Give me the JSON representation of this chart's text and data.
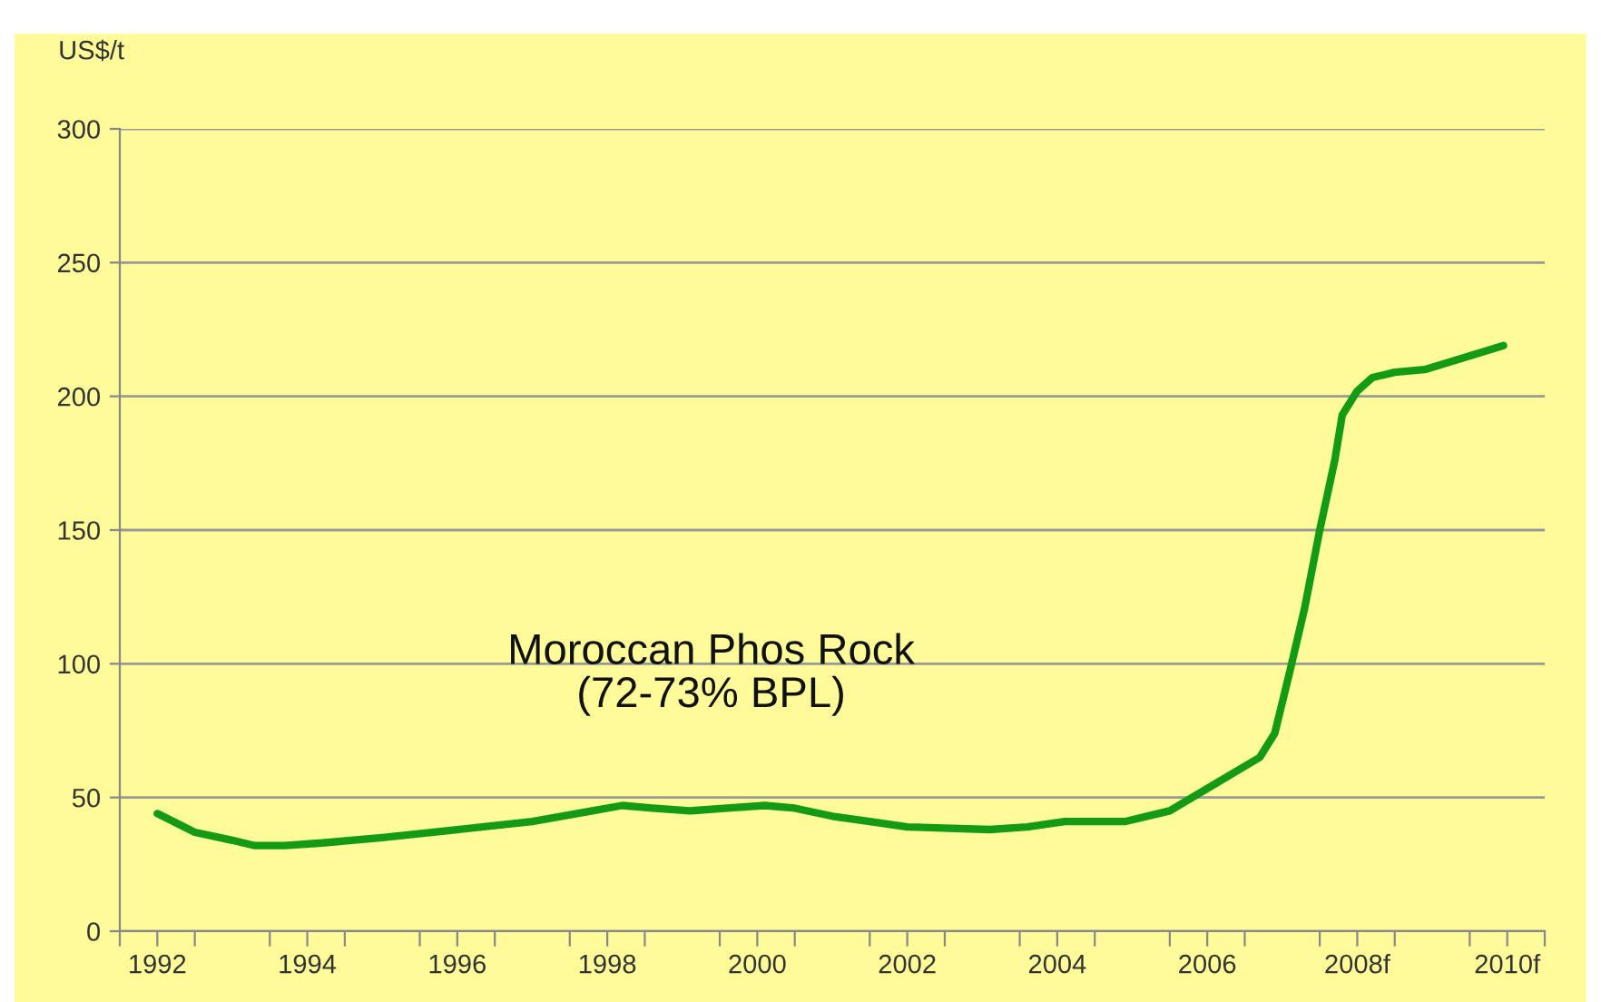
{
  "chart_data": {
    "type": "line",
    "ylabel": "US$/t",
    "xlim": [
      1991.5,
      2010.5
    ],
    "xticks": [
      {
        "value": 1991.5,
        "label": null
      },
      {
        "value": 1992,
        "label": "1992"
      },
      {
        "value": 1992.5,
        "label": null
      },
      {
        "value": 1993.5,
        "label": null
      },
      {
        "value": 1994,
        "label": "1994"
      },
      {
        "value": 1994.5,
        "label": null
      },
      {
        "value": 1995.5,
        "label": null
      },
      {
        "value": 1996,
        "label": "1996"
      },
      {
        "value": 1996.5,
        "label": null
      },
      {
        "value": 1997.5,
        "label": null
      },
      {
        "value": 1998,
        "label": "1998"
      },
      {
        "value": 1998.5,
        "label": null
      },
      {
        "value": 1999.5,
        "label": null
      },
      {
        "value": 2000,
        "label": "2000"
      },
      {
        "value": 2000.5,
        "label": null
      },
      {
        "value": 2001.5,
        "label": null
      },
      {
        "value": 2002,
        "label": "2002"
      },
      {
        "value": 2002.5,
        "label": null
      },
      {
        "value": 2003.5,
        "label": null
      },
      {
        "value": 2004,
        "label": "2004"
      },
      {
        "value": 2004.5,
        "label": null
      },
      {
        "value": 2005.5,
        "label": null
      },
      {
        "value": 2006,
        "label": "2006"
      },
      {
        "value": 2006.5,
        "label": null
      },
      {
        "value": 2007.5,
        "label": null
      },
      {
        "value": 2008,
        "label": "2008f"
      },
      {
        "value": 2008.5,
        "label": null
      },
      {
        "value": 2009.5,
        "label": null
      },
      {
        "value": 2010,
        "label": "2010f"
      },
      {
        "value": 2010.5,
        "label": null
      }
    ],
    "ylim": [
      0,
      300
    ],
    "yticks": [
      0,
      50,
      100,
      150,
      200,
      250,
      300
    ],
    "grid": "y",
    "legend": false,
    "marker": "none",
    "line_style": "solid",
    "series": [
      {
        "name": "Moroccan Phos Rock\n(72-73% BPL)",
        "color": "#159a15",
        "x": [
          1992.0,
          1992.5,
          1993.0,
          1993.3,
          1993.7,
          1994.2,
          1995,
          1996,
          1997,
          1997.8,
          1998.2,
          1998.6,
          1999.1,
          1999.6,
          2000.1,
          2000.5,
          2001,
          2001.5,
          2002,
          2003.1,
          2003.6,
          2004.1,
          2004.9,
          2005.5,
          2006.1,
          2006.7,
          2006.9,
          2007.1,
          2007.3,
          2007.5,
          2007.7,
          2007.8,
          2008.0,
          2008.2,
          2008.5,
          2008.9,
          2009.95
        ],
        "values": [
          44,
          37,
          34,
          32,
          32,
          33,
          35,
          38,
          41,
          45,
          47,
          46,
          45,
          46,
          47,
          46,
          43,
          41,
          39,
          38,
          39,
          41,
          41,
          45,
          55,
          65,
          74,
          97,
          121,
          150,
          176,
          193,
          202,
          207,
          209,
          210,
          219
        ]
      }
    ]
  }
}
